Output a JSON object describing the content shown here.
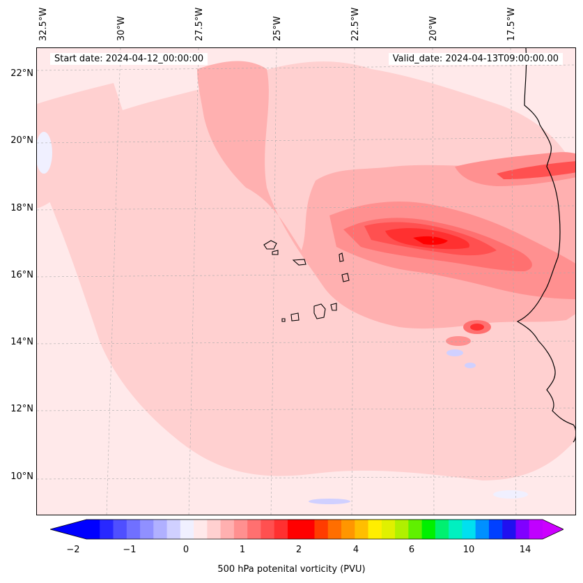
{
  "map": {
    "start_date_text": "Start date: 2024-04-12_00:00:00",
    "valid_date_text": "Valid_date: 2024-04-13T09:00:00.00",
    "lon_labels": [
      "32.5°W",
      "30°W",
      "27.5°W",
      "25°W",
      "22.5°W",
      "20°W",
      "17.5°W"
    ],
    "lat_labels": [
      "22°N",
      "20°N",
      "18°N",
      "16°N",
      "14°N",
      "12°N",
      "10°N"
    ],
    "gridlines": "dashed-gray",
    "coastline_color": "#000000"
  },
  "colorbar": {
    "label": "500 hPa potenital vorticity (PVU)",
    "tick_labels": [
      "−2",
      "−1",
      "0",
      "1",
      "2",
      "4",
      "6",
      "10",
      "14"
    ],
    "colors": [
      "#0000ff",
      "#2828ff",
      "#4f4fff",
      "#7070ff",
      "#9090ff",
      "#b0b0ff",
      "#d0d0ff",
      "#f0f0ff",
      "#ffe9ea",
      "#ffd0d0",
      "#ffb0b0",
      "#ff9090",
      "#ff7070",
      "#ff5050",
      "#ff3030",
      "#ff0000",
      "#ff0000",
      "#ff3c00",
      "#ff6e00",
      "#ff9600",
      "#ffbe00",
      "#ffee00",
      "#e0f000",
      "#b0f000",
      "#60f000",
      "#00f000",
      "#00f070",
      "#00f0c0",
      "#00e0f0",
      "#0090ff",
      "#0040ff",
      "#2010f0",
      "#8000ff",
      "#c000ff"
    ],
    "extend_min_color": "#0000ff",
    "extend_max_color": "#cc00ff"
  }
}
